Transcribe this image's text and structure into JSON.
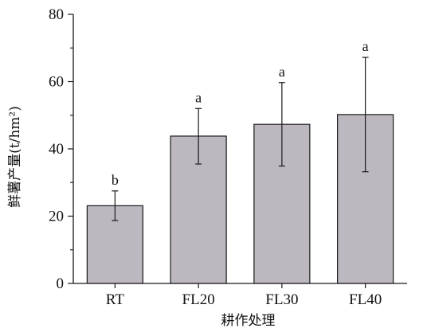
{
  "chart_data": {
    "type": "bar",
    "title": "",
    "xlabel": "耕作处理",
    "ylabel": "鲜薯产量(t/hm²)",
    "categories": [
      "RT",
      "FL20",
      "FL30",
      "FL40"
    ],
    "values": [
      23.1,
      43.8,
      47.3,
      50.2
    ],
    "error_low": [
      18.7,
      35.5,
      34.9,
      33.2
    ],
    "error_high": [
      27.5,
      52.0,
      59.7,
      67.2
    ],
    "significance_labels": [
      "b",
      "a",
      "a",
      "a"
    ],
    "ylim": [
      0,
      80
    ],
    "yticks": [
      0,
      20,
      40,
      60,
      80
    ],
    "grid": false,
    "colors": {
      "bar_fill": "#bdb7c0",
      "bar_stroke": "#1a1a1a",
      "axis": "#1a1a1a"
    }
  }
}
